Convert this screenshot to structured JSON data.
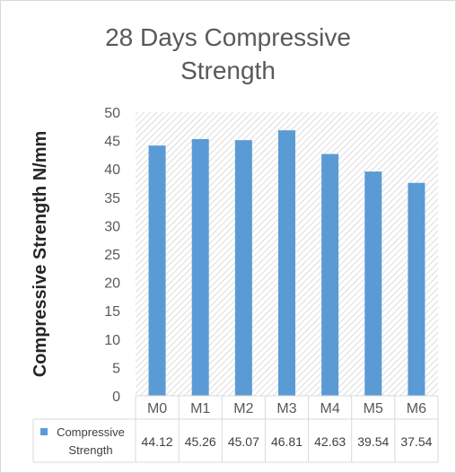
{
  "chart_data": {
    "type": "bar",
    "title_line1": "28 Days Compressive",
    "title_line2": "Strength",
    "xlabel": "",
    "ylabel": "Compressive Strength N/mm",
    "categories": [
      "M0",
      "M1",
      "M2",
      "M3",
      "M4",
      "M5",
      "M6"
    ],
    "series": [
      {
        "name_line1": "Compressive",
        "name_line2": "Strength",
        "values": [
          44.12,
          45.26,
          45.07,
          46.81,
          42.63,
          39.54,
          37.54
        ],
        "value_labels": [
          "44.12",
          "45.26",
          "45.07",
          "46.81",
          "42.63",
          "39.54",
          "37.54"
        ],
        "color": "#5b9bd5"
      }
    ],
    "ylim": [
      0,
      50
    ],
    "yticks": [
      0,
      5,
      10,
      15,
      20,
      25,
      30,
      35,
      40,
      45,
      50
    ],
    "ytick_labels": [
      "0",
      "5",
      "10",
      "15",
      "20",
      "25",
      "30",
      "35",
      "40",
      "45",
      "50"
    ],
    "legend_placement": "data-table-left",
    "plot_background": "hatched",
    "grid": false
  }
}
